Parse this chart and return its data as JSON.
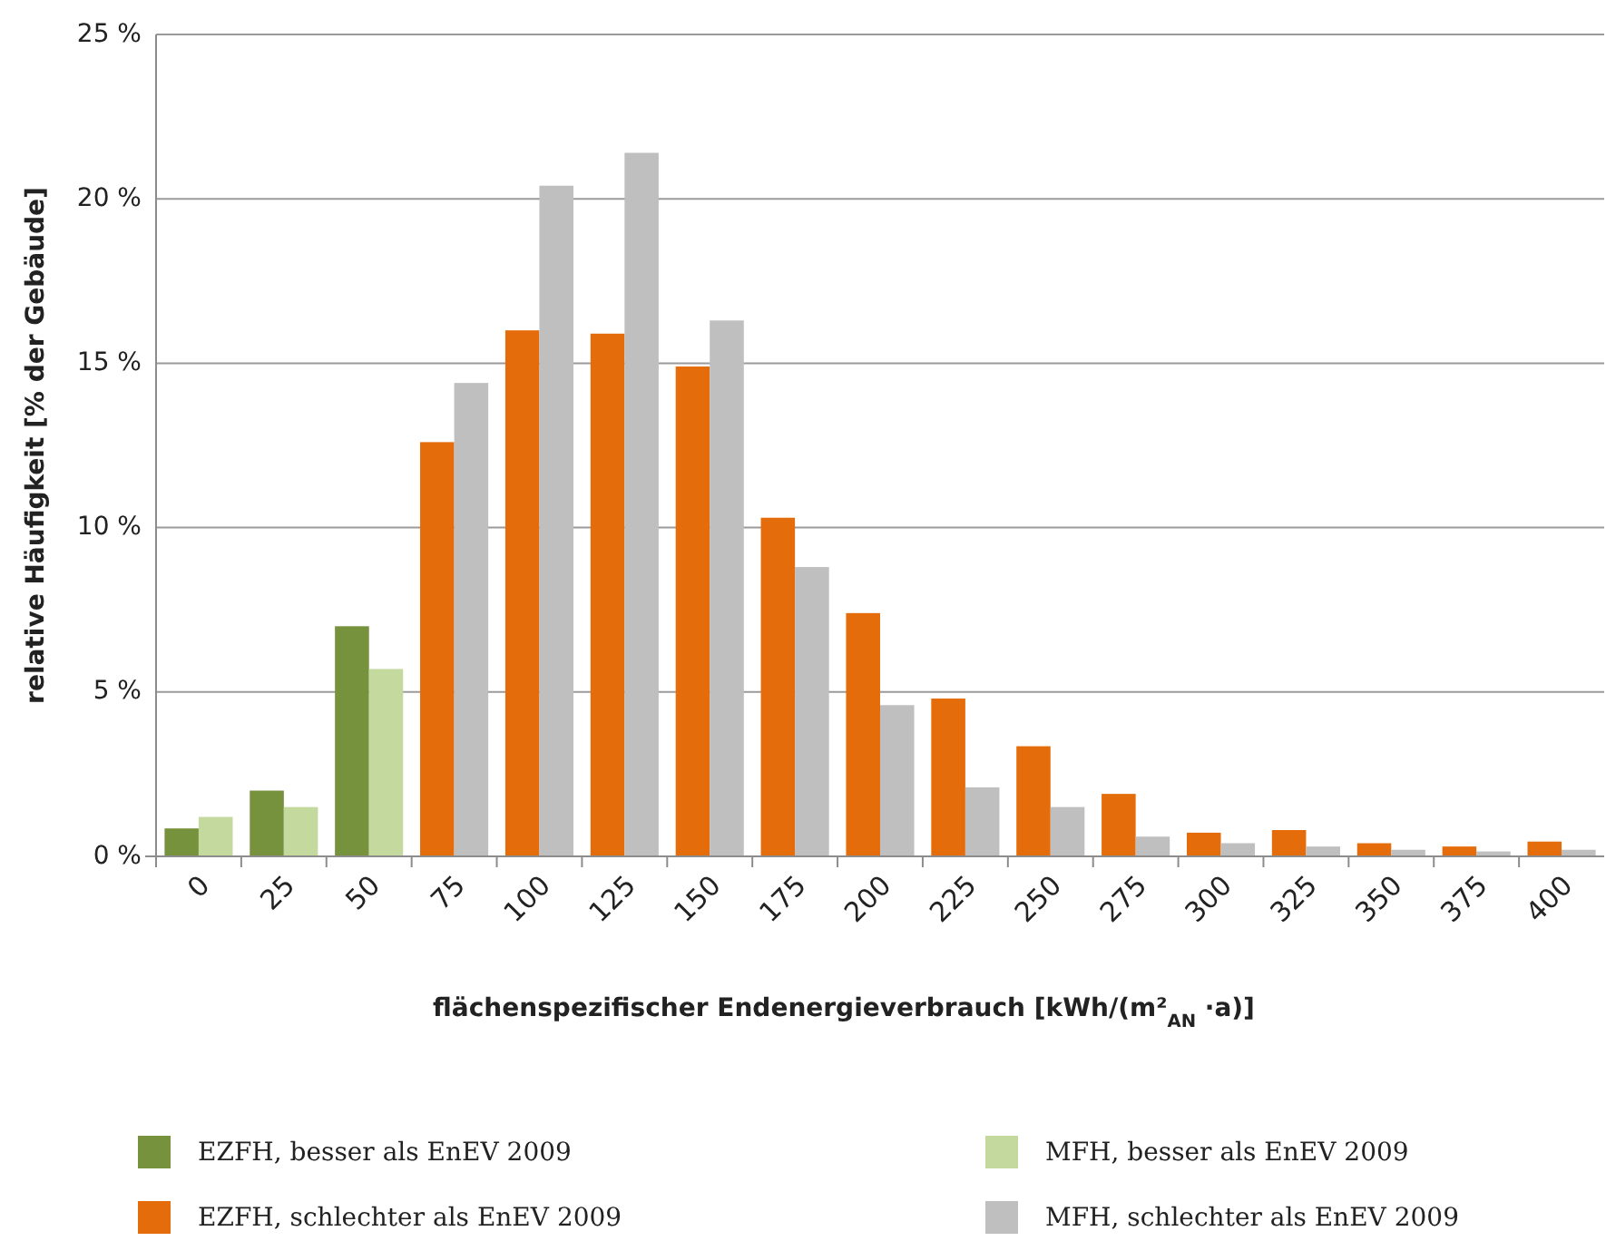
{
  "chart_data": {
    "type": "bar",
    "xlabel": "flächenspezifischer Endenergieverbrauch [kWh/(m²$_{AN}$ ·a)]",
    "ylabel": "relative Häufigkeit [% der Gebäude]",
    "categories": [
      "0",
      "25",
      "50",
      "75",
      "100",
      "125",
      "150",
      "175",
      "200",
      "225",
      "250",
      "275",
      "300",
      "325",
      "350",
      "375",
      "400"
    ],
    "series": [
      {
        "name": "EZFH, besser als EnEV 2009",
        "color": "#76923c",
        "values": [
          0.85,
          2.0,
          7.0,
          null,
          null,
          null,
          null,
          null,
          null,
          null,
          null,
          null,
          null,
          null,
          null,
          null,
          null
        ]
      },
      {
        "name": "MFH, besser als EnEV 2009",
        "color": "#c4d99e",
        "values": [
          1.2,
          1.5,
          5.7,
          null,
          null,
          null,
          null,
          null,
          null,
          null,
          null,
          null,
          null,
          null,
          null,
          null,
          null
        ]
      },
      {
        "name": "EZFH, schlechter als EnEV 2009",
        "color": "#e46c0a",
        "values": [
          null,
          null,
          null,
          12.6,
          16.0,
          15.9,
          14.9,
          10.3,
          7.4,
          4.8,
          3.35,
          1.9,
          0.72,
          0.8,
          0.4,
          0.3,
          0.45
        ]
      },
      {
        "name": "MFH, schlechter als EnEV 2009",
        "color": "#bfbfbf",
        "values": [
          null,
          null,
          null,
          14.4,
          20.4,
          21.4,
          16.3,
          8.8,
          4.6,
          2.1,
          1.5,
          0.6,
          0.4,
          0.3,
          0.2,
          0.15,
          0.2
        ]
      }
    ],
    "ylim": [
      0,
      25
    ],
    "yticks": [
      {
        "value": 0,
        "label": "0 %"
      },
      {
        "value": 5,
        "label": "5 %"
      },
      {
        "value": 10,
        "label": "10 %"
      },
      {
        "value": 15,
        "label": "15 %"
      },
      {
        "value": 20,
        "label": "20 %"
      },
      {
        "value": 25,
        "label": "25 %"
      }
    ],
    "grid": "y",
    "legend": "bottom"
  }
}
